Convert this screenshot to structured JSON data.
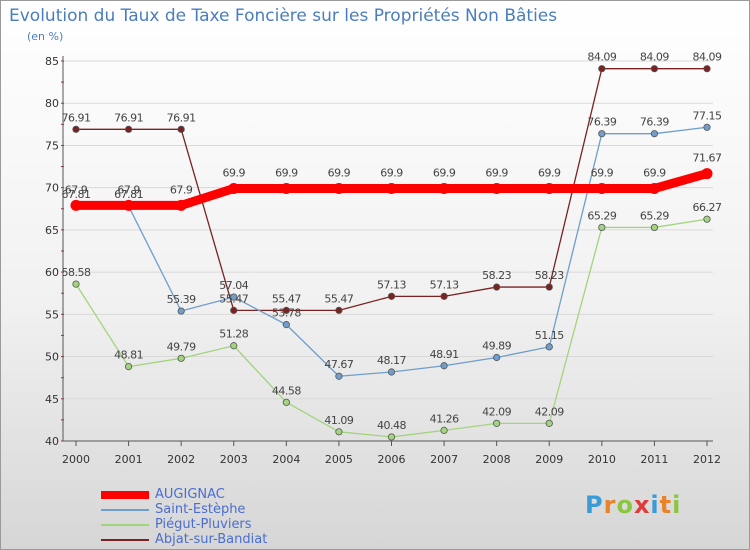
{
  "chart_data": {
    "type": "line",
    "title": "Evolution du Taux de Taxe Foncière sur les Propriétés Non Bâties",
    "ylabel": "(en %)",
    "xlabel": "",
    "ylim": [
      40,
      85
    ],
    "yticks": [
      40,
      45,
      50,
      55,
      60,
      65,
      70,
      75,
      80,
      85
    ],
    "x": [
      "2000",
      "2001",
      "2002",
      "2003",
      "2004",
      "2005",
      "2006",
      "2007",
      "2008",
      "2009",
      "2010",
      "2011",
      "2012"
    ],
    "series": [
      {
        "name": "AUGIGNAC",
        "color": "#ff0000",
        "values": [
          67.9,
          67.9,
          67.9,
          69.9,
          69.9,
          69.9,
          69.9,
          69.9,
          69.9,
          69.9,
          69.9,
          69.9,
          71.67
        ],
        "labels": [
          "67.9",
          "67.9",
          "67.9",
          "69.9",
          "69.9",
          "69.9",
          "69.9",
          "69.9",
          "69.9",
          "69.9",
          "69.9",
          "69.9",
          "71.67"
        ]
      },
      {
        "name": "Saint-Estèphe",
        "color": "#6f9ecc",
        "values": [
          67.81,
          67.81,
          55.39,
          57.04,
          53.78,
          47.67,
          48.17,
          48.91,
          49.89,
          51.15,
          76.39,
          76.39,
          77.15
        ],
        "labels": [
          "67.81",
          "67.81",
          "55.39",
          "57.04",
          "53.78",
          "47.67",
          "48.17",
          "48.91",
          "49.89",
          "51.15",
          "76.39",
          "76.39",
          "77.15"
        ]
      },
      {
        "name": "Piégut-Pluviers",
        "color": "#a2d47e",
        "values": [
          58.58,
          48.81,
          49.79,
          51.28,
          44.58,
          41.09,
          40.48,
          41.26,
          42.09,
          42.09,
          65.29,
          65.29,
          66.27
        ],
        "labels": [
          "58.58",
          "48.81",
          "49.79",
          "51.28",
          "44.58",
          "41.09",
          "40.48",
          "41.26",
          "42.09",
          "42.09",
          "65.29",
          "65.29",
          "66.27"
        ]
      },
      {
        "name": "Abjat-sur-Bandiat",
        "color": "#7a2222",
        "values": [
          76.91,
          76.91,
          76.91,
          55.47,
          55.47,
          55.47,
          57.13,
          57.13,
          58.23,
          58.23,
          84.09,
          84.09,
          84.09
        ],
        "labels": [
          "76.91",
          "76.91",
          "76.91",
          "55.47",
          "55.47",
          "55.47",
          "57.13",
          "57.13",
          "58.23",
          "58.23",
          "84.09",
          "84.09",
          "84.09"
        ]
      }
    ],
    "legend_position": "bottom-left"
  },
  "brand": {
    "letters": [
      "P",
      "r",
      "o",
      "x",
      "i",
      "t",
      "i"
    ],
    "colors": [
      "#3a9bd8",
      "#e8832a",
      "#8cc63f",
      "#e03a3a",
      "#3a9bd8",
      "#e8832a",
      "#8cc63f"
    ]
  }
}
